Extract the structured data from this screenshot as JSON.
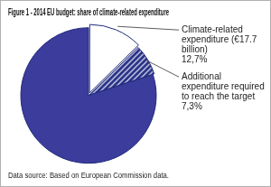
{
  "chart_data": {
    "type": "pie",
    "title": "Figure 1 - 2014 EU budget: share of climate-related expenditure",
    "categories": [
      "Climate-related expenditure (€17.7 billion)",
      "Additional expenditure required to reach the target",
      null
    ],
    "values": [
      12.7,
      7.3,
      80
    ],
    "value_labels": [
      "12,7%",
      "7,3%",
      null
    ],
    "colors": [
      "#ffffff",
      "#262f86",
      "#3c3c9c"
    ],
    "source": "Data source: Based on European Commission data."
  }
}
